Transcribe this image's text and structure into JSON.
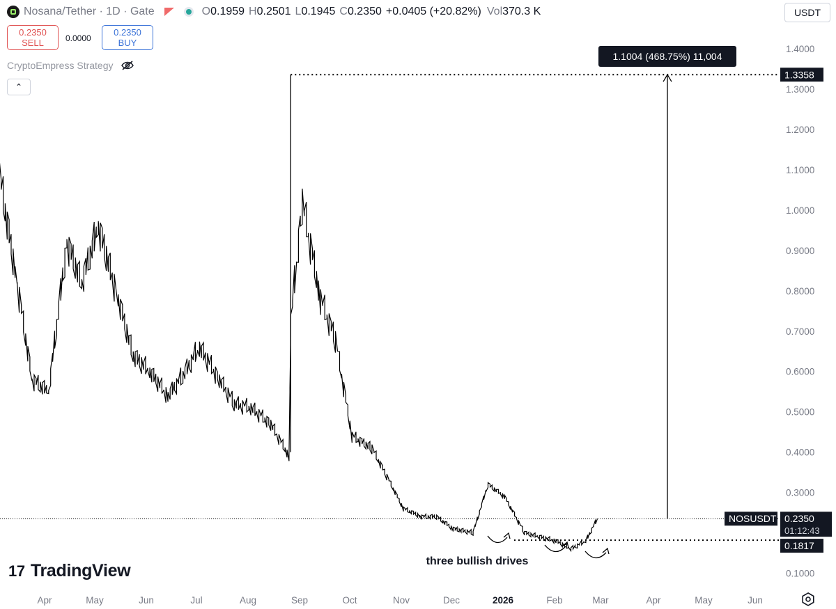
{
  "header": {
    "pair": "Nosana/Tether",
    "interval": "1D",
    "exchange": "Gate",
    "open_label": "O",
    "open": "0.1959",
    "high_label": "H",
    "high": "0.2501",
    "low_label": "L",
    "low": "0.1945",
    "close_label": "C",
    "close": "0.2350",
    "change": "+0.0405 (+20.82%)",
    "vol_label": "Vol",
    "volume": "370.3 K",
    "currency": "USDT"
  },
  "trade": {
    "sell_price": "0.2350",
    "sell_label": "SELL",
    "spread": "0.0000",
    "buy_price": "0.2350",
    "buy_label": "BUY"
  },
  "strategy": {
    "label": "CryptoEmpress Strategy"
  },
  "brand": {
    "name": "TradingView"
  },
  "colors": {
    "sell": "#e05252",
    "buy": "#3b73d8",
    "candles": "#000000",
    "tag_bg": "#131722"
  },
  "chart_data": {
    "type": "line",
    "title": "",
    "symbol": "NOSUSDT",
    "y_ticks": [
      "1.4000",
      "1.3000",
      "1.2000",
      "1.1000",
      "1.0000",
      "0.9000",
      "0.8000",
      "0.7000",
      "0.6000",
      "0.5000",
      "0.4000",
      "0.3000",
      "0.1000"
    ],
    "ylim": [
      0.08,
      1.48
    ],
    "x_labels": [
      "Apr",
      "May",
      "Jun",
      "Jul",
      "Aug",
      "Sep",
      "Oct",
      "Nov",
      "Dec",
      "2026",
      "Feb",
      "Mar",
      "Apr",
      "May",
      "Jun"
    ],
    "highlight_label": "2026",
    "x": [
      "Mar 20",
      "Apr 1",
      "Apr 10",
      "Apr 20",
      "May 1",
      "May 10",
      "May 20",
      "Jun 1",
      "Jun 10",
      "Jun 20",
      "Jul 1",
      "Jul 10",
      "Jul 20",
      "Aug 1",
      "Aug 10",
      "Aug 20",
      "Sep 1",
      "Sep 12",
      "Sep 13",
      "Sep 20",
      "Oct 1",
      "Oct 10",
      "Oct 20",
      "Nov 1",
      "Nov 10",
      "Nov 20",
      "Dec 1",
      "Dec 10",
      "Dec 20",
      "Jan 1",
      "Jan 10",
      "Jan 20",
      "Feb 1",
      "Feb 10",
      "Feb 20",
      "Mar 1",
      "Mar 10",
      "Mar 17"
    ],
    "y": [
      1.12,
      0.82,
      0.58,
      0.55,
      0.92,
      0.82,
      0.96,
      0.78,
      0.64,
      0.6,
      0.54,
      0.59,
      0.66,
      0.58,
      0.52,
      0.51,
      0.47,
      0.39,
      0.72,
      1.02,
      0.78,
      0.68,
      0.44,
      0.41,
      0.34,
      0.26,
      0.24,
      0.24,
      0.21,
      0.2,
      0.32,
      0.29,
      0.2,
      0.19,
      0.18,
      0.16,
      0.18,
      0.235
    ],
    "current_price": "0.2350",
    "countdown": "01:12:43",
    "support_level": "0.1817",
    "peak_level": "1.3358",
    "measure_label": "1.1004 (468.75%) 11,004",
    "annotation": "three bullish drives"
  }
}
